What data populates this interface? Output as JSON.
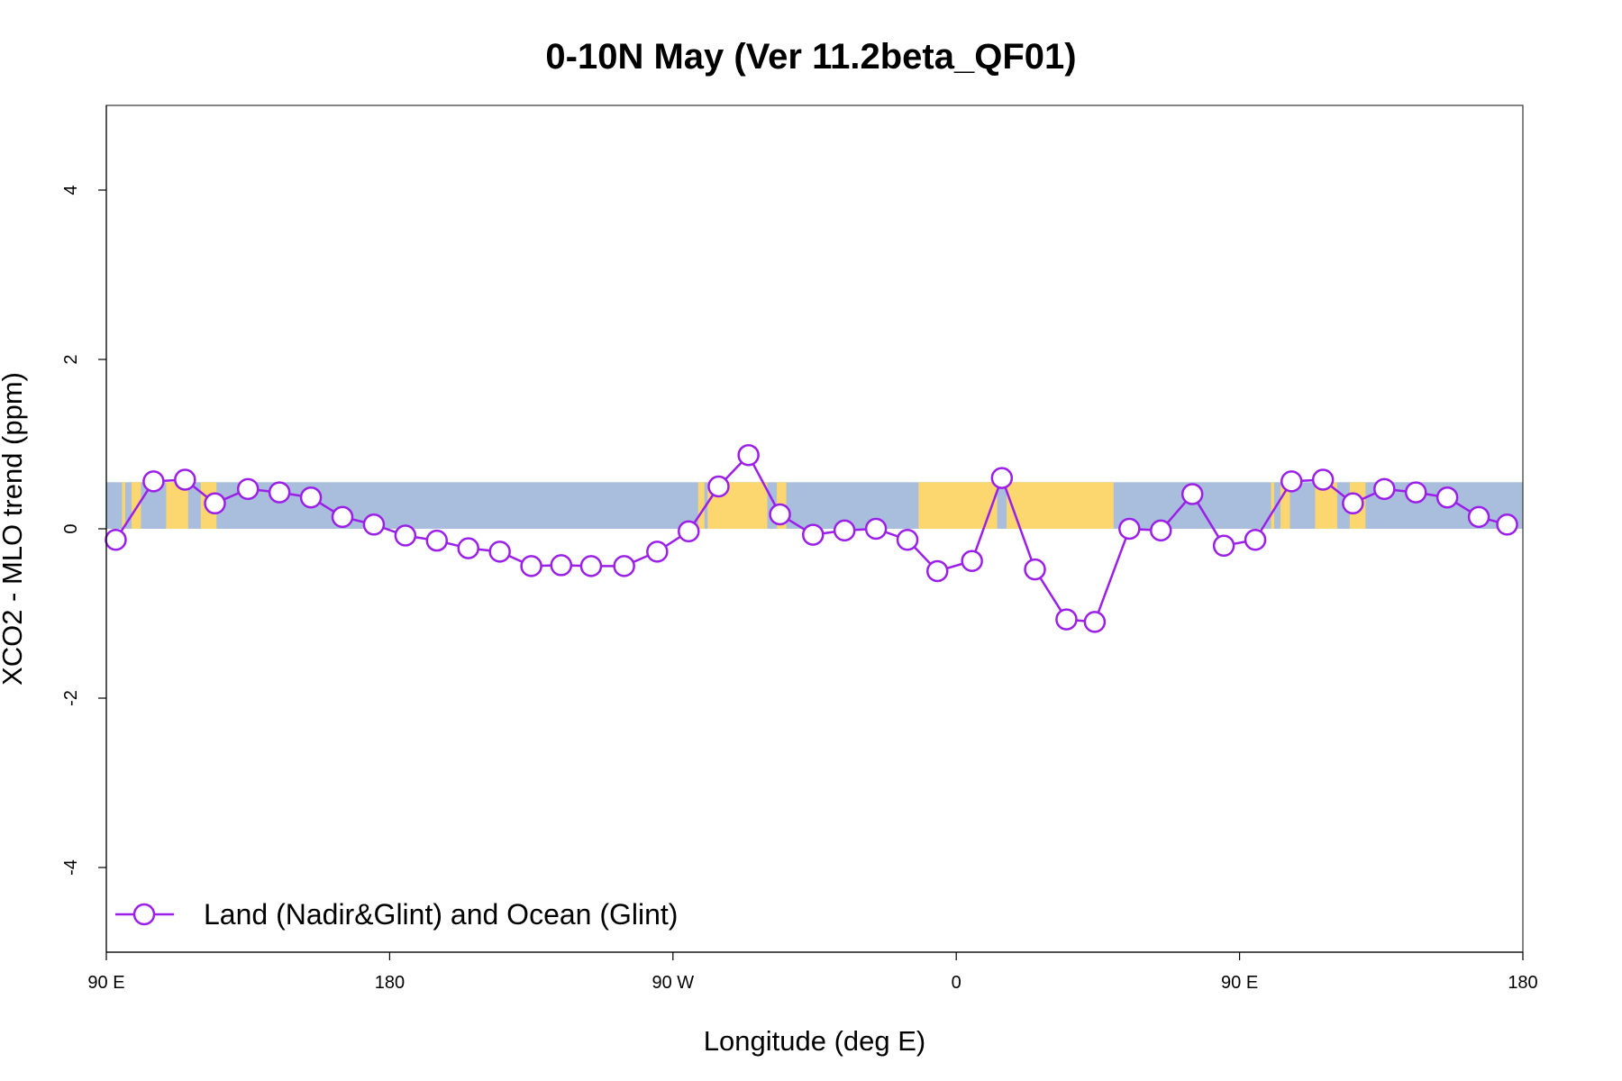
{
  "chart_data": {
    "type": "line",
    "title": "0-10N May (Ver 11.2beta_QF01)",
    "xlabel": "Longitude (deg E)",
    "ylabel": "XCO2 - MLO trend (ppm)",
    "xlim": [
      90,
      540
    ],
    "ylim": [
      -5,
      5
    ],
    "x_ticks": [
      {
        "value": 90,
        "label": "90 E"
      },
      {
        "value": 180,
        "label": "180"
      },
      {
        "value": 270,
        "label": "90 W"
      },
      {
        "value": 360,
        "label": "0"
      },
      {
        "value": 450,
        "label": "90 E"
      },
      {
        "value": 540,
        "label": "180"
      }
    ],
    "y_ticks": [
      {
        "value": -4,
        "label": "-4"
      },
      {
        "value": -2,
        "label": "-2"
      },
      {
        "value": 0,
        "label": "0"
      },
      {
        "value": 2,
        "label": "2"
      },
      {
        "value": 4,
        "label": "4"
      }
    ],
    "grid": false,
    "legend_position": "bottom-left",
    "background_band": {
      "ymin": 0,
      "ymax": 0.55,
      "ocean_color": "#a8bedc",
      "land_color": "#fcd66e",
      "land_segments": [
        [
          95,
          96
        ],
        [
          98,
          101
        ],
        [
          109,
          116
        ],
        [
          120,
          125
        ],
        [
          278,
          280
        ],
        [
          281,
          300
        ],
        [
          303,
          306
        ],
        [
          348,
          373
        ],
        [
          376,
          410
        ],
        [
          460,
          461
        ],
        [
          463,
          466
        ],
        [
          474,
          481
        ],
        [
          485,
          490
        ]
      ]
    },
    "series": [
      {
        "name": "Land (Nadir&Glint) and Ocean (Glint)",
        "color": "#9b1fe8",
        "marker": "circle",
        "x": [
          93,
          105,
          115,
          124.5,
          135,
          145,
          155,
          165,
          175,
          185,
          195,
          205,
          215,
          225,
          234.5,
          244,
          254.5,
          265,
          275,
          284.5,
          294,
          304,
          314.5,
          324.5,
          334.5,
          344.5,
          354,
          365,
          374.5,
          385,
          395,
          404,
          415,
          425,
          435,
          445,
          455,
          466.5,
          476.5,
          486,
          496,
          506,
          516,
          526,
          535
        ],
        "y": [
          -0.13,
          0.56,
          0.58,
          0.3,
          0.47,
          0.43,
          0.37,
          0.14,
          0.05,
          -0.08,
          -0.14,
          -0.23,
          -0.27,
          -0.44,
          -0.43,
          -0.44,
          -0.44,
          -0.27,
          -0.03,
          0.5,
          0.87,
          0.17,
          -0.07,
          -0.02,
          0.0,
          -0.13,
          -0.5,
          -0.38,
          0.6,
          -0.48,
          -1.07,
          -1.1,
          0.0,
          -0.02,
          0.41,
          -0.2,
          -0.13,
          0.56,
          0.58,
          0.3,
          0.47,
          0.43,
          0.37,
          0.14,
          0.05
        ]
      }
    ]
  }
}
